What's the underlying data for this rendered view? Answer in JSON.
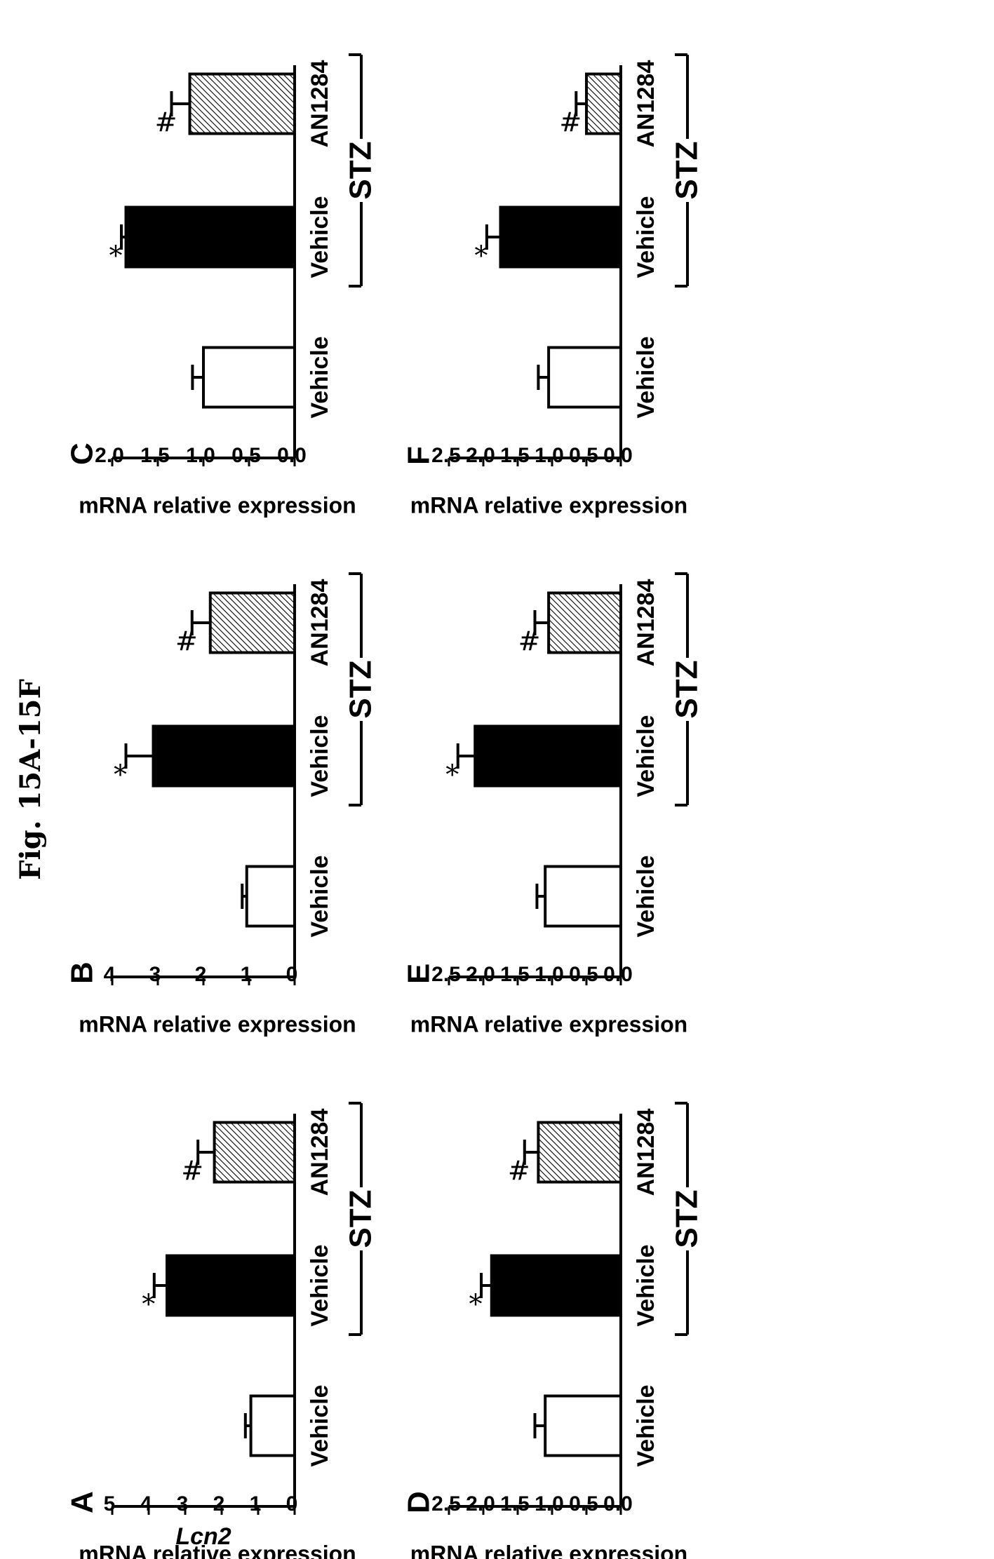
{
  "figure_title": "Fig. 15A-15F",
  "gene_label": "Lcn2",
  "chart_data": [
    {
      "type": "bar",
      "panel": "A",
      "ylabel": "mRNA relative expression",
      "ylim": [
        0,
        5
      ],
      "yticks": [
        "0",
        "1",
        "2",
        "3",
        "4",
        "5"
      ],
      "categories": [
        "Vehicle",
        "Vehicle",
        "AN1284"
      ],
      "group_label": "STZ",
      "values": [
        1.2,
        3.5,
        2.2
      ],
      "errors": [
        0.15,
        0.35,
        0.45
      ],
      "fills": [
        "white",
        "black",
        "hatch"
      ],
      "marks": [
        "",
        "*",
        "#"
      ]
    },
    {
      "type": "bar",
      "panel": "B",
      "ylabel": "mRNA relative expression",
      "ylim": [
        0,
        4
      ],
      "yticks": [
        "0",
        "1",
        "2",
        "3",
        "4"
      ],
      "categories": [
        "Vehicle",
        "Vehicle",
        "AN1284"
      ],
      "group_label": "STZ",
      "values": [
        1.05,
        3.1,
        1.85
      ],
      "errors": [
        0.1,
        0.6,
        0.4
      ],
      "fills": [
        "white",
        "black",
        "hatch"
      ],
      "marks": [
        "",
        "*",
        "#"
      ]
    },
    {
      "type": "bar",
      "panel": "C",
      "ylabel": "mRNA relative expression",
      "ylim": [
        0,
        2
      ],
      "yticks": [
        "0.0",
        "0.5",
        "1.0",
        "1.5",
        "2.0"
      ],
      "categories": [
        "Vehicle",
        "Vehicle",
        "AN1284"
      ],
      "group_label": "STZ",
      "values": [
        1.0,
        1.85,
        1.15
      ],
      "errors": [
        0.12,
        0.05,
        0.2
      ],
      "fills": [
        "white",
        "black",
        "hatch"
      ],
      "marks": [
        "",
        "*",
        "#"
      ]
    },
    {
      "type": "bar",
      "panel": "D",
      "ylabel": "mRNA relative expression",
      "ylim": [
        0,
        2.5
      ],
      "yticks": [
        "0.0",
        "0.5",
        "1.0",
        "1.5",
        "2.0",
        "2.5"
      ],
      "categories": [
        "Vehicle",
        "Vehicle",
        "AN1284"
      ],
      "group_label": "STZ",
      "values": [
        1.1,
        1.88,
        1.2
      ],
      "errors": [
        0.15,
        0.15,
        0.2
      ],
      "fills": [
        "white",
        "black",
        "hatch"
      ],
      "marks": [
        "",
        "*",
        "#"
      ]
    },
    {
      "type": "bar",
      "panel": "E",
      "ylabel": "mRNA relative expression",
      "ylim": [
        0,
        2.5
      ],
      "yticks": [
        "0.0",
        "0.5",
        "1.0",
        "1.5",
        "2.0",
        "2.5"
      ],
      "categories": [
        "Vehicle",
        "Vehicle",
        "AN1284"
      ],
      "group_label": "STZ",
      "values": [
        1.1,
        2.12,
        1.05
      ],
      "errors": [
        0.12,
        0.25,
        0.2
      ],
      "fills": [
        "white",
        "black",
        "hatch"
      ],
      "marks": [
        "",
        "*",
        "#"
      ]
    },
    {
      "type": "bar",
      "panel": "F",
      "ylabel": "mRNA relative expression",
      "ylim": [
        0,
        2.5
      ],
      "yticks": [
        "0.0",
        "0.5",
        "1.0",
        "1.5",
        "2.0",
        "2.5"
      ],
      "categories": [
        "Vehicle",
        "Vehicle",
        "AN1284"
      ],
      "group_label": "STZ",
      "values": [
        1.05,
        1.75,
        0.5
      ],
      "errors": [
        0.15,
        0.2,
        0.15
      ],
      "fills": [
        "white",
        "black",
        "hatch"
      ],
      "marks": [
        "",
        "*",
        "#"
      ]
    }
  ]
}
